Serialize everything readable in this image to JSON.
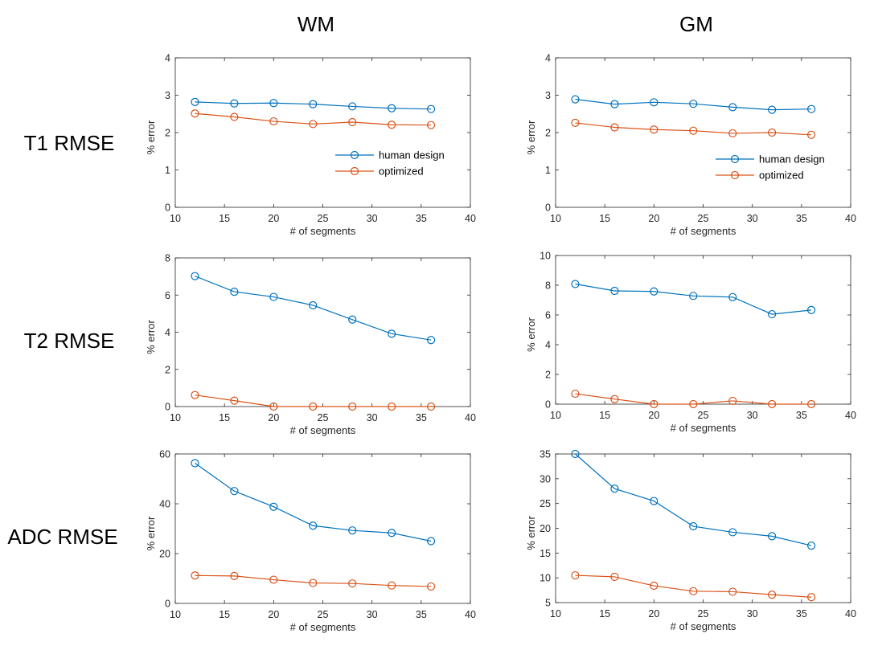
{
  "column_titles": [
    "WM",
    "GM"
  ],
  "row_titles": [
    "T1 RMSE",
    "T2 RMSE",
    "ADC RMSE"
  ],
  "colors": {
    "human_design": "#0072BD",
    "optimized": "#D95319",
    "axis": "#262626"
  },
  "chart_data": [
    {
      "type": "line",
      "panel": "T1 RMSE / WM",
      "xlabel": "# of segments",
      "ylabel": "% error",
      "xlim": [
        10,
        40
      ],
      "ylim": [
        0,
        4
      ],
      "xticks": [
        10,
        15,
        20,
        25,
        30,
        35,
        40
      ],
      "yticks": [
        0,
        1,
        2,
        3,
        4
      ],
      "x": [
        12,
        16,
        20,
        24,
        28,
        32,
        36
      ],
      "series": [
        {
          "name": "human design",
          "values": [
            2.82,
            2.78,
            2.79,
            2.76,
            2.7,
            2.65,
            2.63
          ]
        },
        {
          "name": "optimized",
          "values": [
            2.51,
            2.42,
            2.3,
            2.23,
            2.28,
            2.21,
            2.2
          ]
        }
      ],
      "legend": "inside-lower-right"
    },
    {
      "type": "line",
      "panel": "T1 RMSE / GM",
      "xlabel": "# of segments",
      "ylabel": "% error",
      "xlim": [
        10,
        40
      ],
      "ylim": [
        0,
        4
      ],
      "xticks": [
        10,
        15,
        20,
        25,
        30,
        35,
        40
      ],
      "yticks": [
        0,
        1,
        2,
        3,
        4
      ],
      "x": [
        12,
        16,
        20,
        24,
        28,
        32,
        36
      ],
      "series": [
        {
          "name": "human design",
          "values": [
            2.89,
            2.76,
            2.81,
            2.77,
            2.68,
            2.61,
            2.63
          ]
        },
        {
          "name": "optimized",
          "values": [
            2.26,
            2.14,
            2.08,
            2.05,
            1.98,
            2.0,
            1.94
          ]
        }
      ],
      "legend": "inside-lower-right"
    },
    {
      "type": "line",
      "panel": "T2 RMSE / WM",
      "xlabel": "# of segments",
      "ylabel": "% error",
      "xlim": [
        10,
        40
      ],
      "ylim": [
        0,
        8
      ],
      "xticks": [
        10,
        15,
        20,
        25,
        30,
        35,
        40
      ],
      "yticks": [
        0,
        2,
        4,
        6,
        8
      ],
      "x": [
        12,
        16,
        20,
        24,
        28,
        32,
        36
      ],
      "series": [
        {
          "name": "human design",
          "values": [
            7.02,
            6.18,
            5.9,
            5.45,
            4.68,
            3.92,
            3.58
          ]
        },
        {
          "name": "optimized",
          "values": [
            0.62,
            0.32,
            0.0,
            0.0,
            0.0,
            0.0,
            0.0
          ]
        }
      ]
    },
    {
      "type": "line",
      "panel": "T2 RMSE / GM",
      "xlabel": "# of segments",
      "ylabel": "% error",
      "xlim": [
        10,
        40
      ],
      "ylim": [
        0,
        10
      ],
      "xticks": [
        10,
        15,
        20,
        25,
        30,
        35,
        40
      ],
      "yticks": [
        0,
        2,
        4,
        6,
        8,
        10
      ],
      "x": [
        12,
        16,
        20,
        24,
        28,
        32,
        36
      ],
      "series": [
        {
          "name": "human design",
          "values": [
            8.08,
            7.62,
            7.58,
            7.28,
            7.2,
            6.05,
            6.33
          ]
        },
        {
          "name": "optimized",
          "values": [
            0.7,
            0.34,
            0.0,
            0.0,
            0.22,
            0.0,
            0.0
          ]
        }
      ]
    },
    {
      "type": "line",
      "panel": "ADC RMSE / WM",
      "xlabel": "# of segments",
      "ylabel": "% error",
      "xlim": [
        10,
        40
      ],
      "ylim": [
        0,
        60
      ],
      "xticks": [
        10,
        15,
        20,
        25,
        30,
        35,
        40
      ],
      "yticks": [
        0,
        20,
        40,
        60
      ],
      "x": [
        12,
        16,
        20,
        24,
        28,
        32,
        36
      ],
      "series": [
        {
          "name": "human design",
          "values": [
            56.3,
            45.1,
            38.8,
            31.2,
            29.3,
            28.3,
            25.0
          ]
        },
        {
          "name": "optimized",
          "values": [
            11.2,
            11.0,
            9.5,
            8.2,
            8.0,
            7.2,
            6.8
          ]
        }
      ]
    },
    {
      "type": "line",
      "panel": "ADC RMSE / GM",
      "xlabel": "# of segments",
      "ylabel": "% error",
      "xlim": [
        10,
        40
      ],
      "ylim": [
        5,
        35
      ],
      "xticks": [
        10,
        15,
        20,
        25,
        30,
        35,
        40
      ],
      "yticks": [
        5,
        10,
        15,
        20,
        25,
        30,
        35
      ],
      "x": [
        12,
        16,
        20,
        24,
        28,
        32,
        36
      ],
      "series": [
        {
          "name": "human design",
          "values": [
            35.0,
            28.0,
            25.5,
            20.4,
            19.2,
            18.4,
            16.5
          ]
        },
        {
          "name": "optimized",
          "values": [
            10.5,
            10.2,
            8.4,
            7.3,
            7.2,
            6.6,
            6.1
          ]
        }
      ]
    }
  ]
}
